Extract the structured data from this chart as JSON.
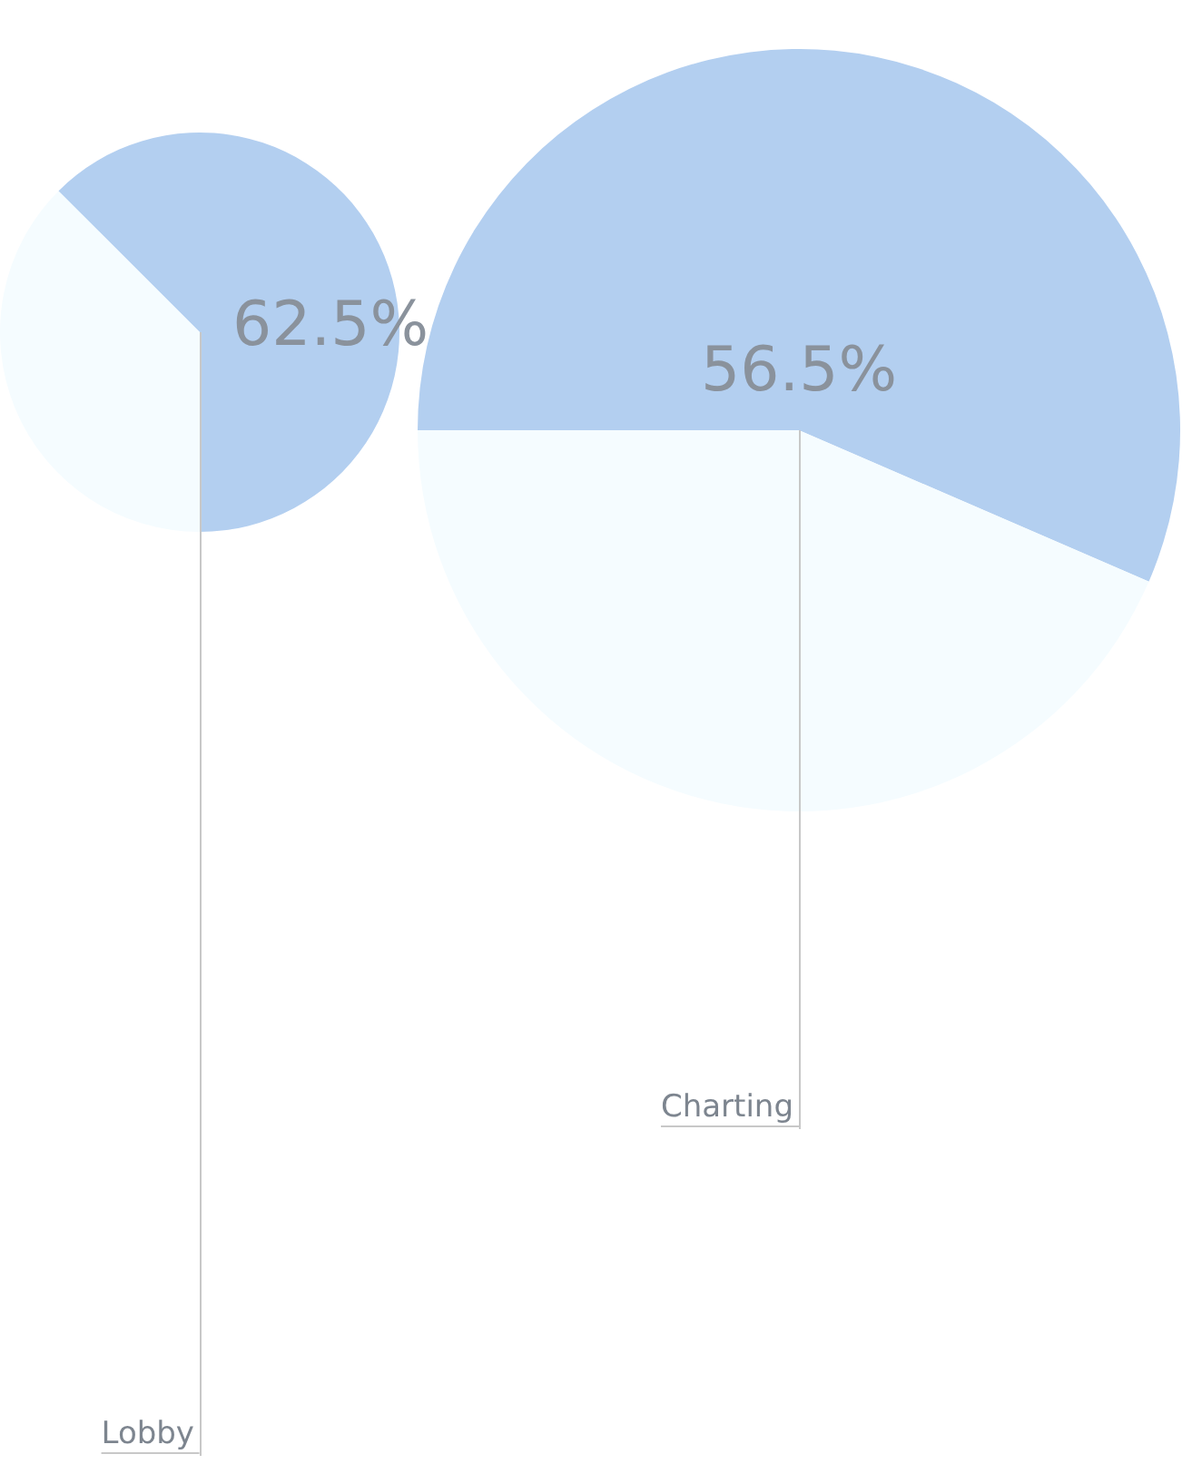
{
  "chart_data": [
    {
      "type": "pie",
      "categories": [
        null,
        null
      ],
      "values": [
        62.5,
        37.5
      ],
      "colors": [
        "#b3cff0",
        "#f5fcff"
      ],
      "value_labels": [
        "62.5%",
        null
      ],
      "annotations": [
        "Lobby"
      ]
    },
    {
      "type": "pie",
      "categories": [
        null,
        null
      ],
      "values": [
        56.5,
        43.5
      ],
      "colors": [
        "#b3cff0",
        "#f5fcff"
      ],
      "value_labels": [
        "56.5%",
        null
      ],
      "annotations": [
        "Charting"
      ]
    }
  ]
}
